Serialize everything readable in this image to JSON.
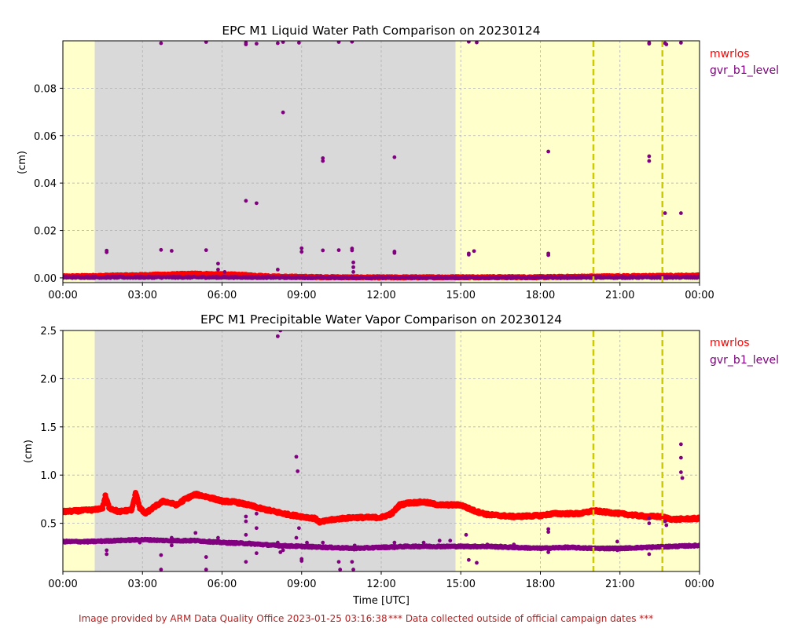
{
  "chart_data": [
    {
      "type": "scatter",
      "title": "EPC M1  Liquid Water Path Comparison on 20230124",
      "ylabel": "(cm)",
      "xlabel": "",
      "xlim": [
        0,
        24
      ],
      "ylim": [
        -0.002,
        0.1
      ],
      "x_tick_labels": [
        "00:00",
        "03:00",
        "06:00",
        "09:00",
        "12:00",
        "15:00",
        "18:00",
        "21:00",
        "00:00"
      ],
      "y_ticks": [
        0.0,
        0.02,
        0.04,
        0.06,
        0.08
      ],
      "y_tick_labels": [
        "0.00",
        "0.02",
        "0.04",
        "0.06",
        "0.08"
      ],
      "grid": true,
      "legend_placement": "outside-right",
      "background_regions": [
        {
          "x0": 0,
          "x1": 1.2,
          "color": "#ffffcc"
        },
        {
          "x0": 1.2,
          "x1": 14.8,
          "color": "#d9d9d9"
        },
        {
          "x0": 14.8,
          "x1": 24,
          "color": "#ffffcc"
        }
      ],
      "vlines": {
        "x": [
          20.0,
          22.6
        ],
        "color": "#cccc00"
      },
      "series": [
        {
          "name": "mwrlos",
          "color": "#ff0000",
          "marker_size": 3.2,
          "band": {
            "step": 0.02,
            "noise": 0.0003,
            "knots": [
              [
                0,
                0.0006
              ],
              [
                3,
                0.0012
              ],
              [
                5,
                0.0018
              ],
              [
                6.5,
                0.0014
              ],
              [
                8,
                0.0006
              ],
              [
                10,
                0.0003
              ],
              [
                12,
                0.0002
              ],
              [
                15,
                0.0003
              ],
              [
                18,
                0.0003
              ],
              [
                20,
                0.0006
              ],
              [
                22,
                0.0008
              ],
              [
                24,
                0.001
              ]
            ]
          },
          "points": []
        },
        {
          "name": "gvr_b1_level",
          "color": "#800080",
          "marker_size": 2.4,
          "band": {
            "step": 0.02,
            "noise": 0.0003,
            "knots": [
              [
                0,
                0.0002
              ],
              [
                6,
                0.0002
              ],
              [
                9,
                0.0001
              ],
              [
                15,
                0.0001
              ],
              [
                24,
                0.0002
              ]
            ]
          },
          "points": [
            [
              1.65,
              0.0108
            ],
            [
              1.65,
              0.0115
            ],
            [
              3.7,
              0.0118
            ],
            [
              4.1,
              0.0114
            ],
            [
              5.4,
              0.0117
            ],
            [
              5.85,
              0.006
            ],
            [
              5.85,
              0.0035
            ],
            [
              6.1,
              0.0025
            ],
            [
              6.9,
              0.0325
            ],
            [
              7.3,
              0.0315
            ],
            [
              8.1,
              0.0035
            ],
            [
              8.3,
              0.0698
            ],
            [
              9.0,
              0.0125
            ],
            [
              9.0,
              0.011
            ],
            [
              9.8,
              0.0116
            ],
            [
              9.8,
              0.0505
            ],
            [
              9.8,
              0.0493
            ],
            [
              10.4,
              0.0117
            ],
            [
              10.9,
              0.0124
            ],
            [
              10.9,
              0.0116
            ],
            [
              10.95,
              0.0065
            ],
            [
              10.95,
              0.0045
            ],
            [
              10.95,
              0.0025
            ],
            [
              12.5,
              0.0105
            ],
            [
              12.5,
              0.0111
            ],
            [
              12.5,
              0.0509
            ],
            [
              15.3,
              0.0098
            ],
            [
              15.5,
              0.0113
            ],
            [
              15.3,
              0.0103
            ],
            [
              18.3,
              0.0096
            ],
            [
              18.3,
              0.0103
            ],
            [
              18.3,
              0.0533
            ],
            [
              22.1,
              0.0513
            ],
            [
              22.1,
              0.0493
            ],
            [
              22.7,
              0.0273
            ],
            [
              23.3,
              0.0273
            ],
            [
              3.7,
              0.099
            ],
            [
              5.4,
              0.0995
            ],
            [
              6.9,
              0.0985
            ],
            [
              6.9,
              0.0992
            ],
            [
              7.3,
              0.0988
            ],
            [
              8.1,
              0.099
            ],
            [
              8.3,
              0.0995
            ],
            [
              8.9,
              0.0992
            ],
            [
              10.4,
              0.0995
            ],
            [
              10.9,
              0.0996
            ],
            [
              15.3,
              0.0996
            ],
            [
              15.6,
              0.0993
            ],
            [
              22.1,
              0.0988
            ],
            [
              22.1,
              0.0992
            ],
            [
              22.7,
              0.099
            ],
            [
              22.75,
              0.0985
            ],
            [
              23.3,
              0.0992
            ]
          ]
        }
      ]
    },
    {
      "type": "scatter",
      "title": "EPC M1  Precipitable Water Vapor Comparison on 20230124",
      "ylabel": "(cm)",
      "xlabel": "Time [UTC]",
      "xlim": [
        0,
        24
      ],
      "ylim": [
        0,
        2.5
      ],
      "x_tick_labels": [
        "00:00",
        "03:00",
        "06:00",
        "09:00",
        "12:00",
        "15:00",
        "18:00",
        "21:00",
        "00:00"
      ],
      "y_ticks": [
        0.5,
        1.0,
        1.5,
        2.0,
        2.5
      ],
      "y_tick_labels": [
        "0.5",
        "1.0",
        "1.5",
        "2.0",
        "2.5"
      ],
      "grid": true,
      "legend_placement": "outside-right",
      "background_regions": [
        {
          "x0": 0,
          "x1": 1.2,
          "color": "#ffffcc"
        },
        {
          "x0": 1.2,
          "x1": 14.8,
          "color": "#d9d9d9"
        },
        {
          "x0": 14.8,
          "x1": 24,
          "color": "#ffffcc"
        }
      ],
      "vlines": {
        "x": [
          20.0,
          22.6
        ],
        "color": "#cccc00"
      },
      "series": [
        {
          "name": "mwrlos",
          "color": "#ff0000",
          "marker_size": 3.6,
          "band": {
            "step": 0.02,
            "noise": 0.012,
            "knots": [
              [
                0,
                0.62
              ],
              [
                0.6,
                0.63
              ],
              [
                1.2,
                0.64
              ],
              [
                1.5,
                0.66
              ],
              [
                1.6,
                0.78
              ],
              [
                1.75,
                0.66
              ],
              [
                2.1,
                0.62
              ],
              [
                2.6,
                0.64
              ],
              [
                2.75,
                0.82
              ],
              [
                2.9,
                0.66
              ],
              [
                3.1,
                0.6
              ],
              [
                3.5,
                0.68
              ],
              [
                3.8,
                0.73
              ],
              [
                4.3,
                0.69
              ],
              [
                4.6,
                0.75
              ],
              [
                5.0,
                0.8
              ],
              [
                5.5,
                0.77
              ],
              [
                6.0,
                0.73
              ],
              [
                6.5,
                0.72
              ],
              [
                7.0,
                0.69
              ],
              [
                7.5,
                0.65
              ],
              [
                8.0,
                0.62
              ],
              [
                8.5,
                0.59
              ],
              [
                9.0,
                0.57
              ],
              [
                9.5,
                0.55
              ],
              [
                9.7,
                0.51
              ],
              [
                10.0,
                0.53
              ],
              [
                10.5,
                0.55
              ],
              [
                11.0,
                0.56
              ],
              [
                12.0,
                0.56
              ],
              [
                12.4,
                0.6
              ],
              [
                12.7,
                0.69
              ],
              [
                13.0,
                0.71
              ],
              [
                13.6,
                0.72
              ],
              [
                14.2,
                0.69
              ],
              [
                15.0,
                0.69
              ],
              [
                15.5,
                0.63
              ],
              [
                16.0,
                0.59
              ],
              [
                17.0,
                0.57
              ],
              [
                18.0,
                0.58
              ],
              [
                18.5,
                0.6
              ],
              [
                19.5,
                0.6
              ],
              [
                20.0,
                0.63
              ],
              [
                21.0,
                0.6
              ],
              [
                22.0,
                0.57
              ],
              [
                22.5,
                0.57
              ],
              [
                23.0,
                0.54
              ],
              [
                24.0,
                0.55
              ]
            ]
          },
          "points": []
        },
        {
          "name": "gvr_b1_level",
          "color": "#800080",
          "marker_size": 3.0,
          "band": {
            "step": 0.02,
            "noise": 0.008,
            "knots": [
              [
                0,
                0.31
              ],
              [
                1.0,
                0.31
              ],
              [
                2.0,
                0.32
              ],
              [
                3.0,
                0.33
              ],
              [
                4.0,
                0.32
              ],
              [
                5.0,
                0.32
              ],
              [
                6.0,
                0.3
              ],
              [
                7.0,
                0.29
              ],
              [
                8.0,
                0.27
              ],
              [
                9.0,
                0.26
              ],
              [
                10.0,
                0.25
              ],
              [
                11.0,
                0.24
              ],
              [
                12.0,
                0.25
              ],
              [
                13.0,
                0.26
              ],
              [
                14.0,
                0.26
              ],
              [
                15.0,
                0.26
              ],
              [
                16.0,
                0.26
              ],
              [
                17.0,
                0.25
              ],
              [
                18.0,
                0.24
              ],
              [
                19.0,
                0.25
              ],
              [
                20.0,
                0.24
              ],
              [
                21.0,
                0.24
              ],
              [
                22.0,
                0.25
              ],
              [
                23.0,
                0.26
              ],
              [
                24.0,
                0.27
              ]
            ]
          },
          "points": [
            [
              1.65,
              0.22
            ],
            [
              1.65,
              0.18
            ],
            [
              2.9,
              0.3
            ],
            [
              3.7,
              0.17
            ],
            [
              3.7,
              0.02
            ],
            [
              4.1,
              0.27
            ],
            [
              4.1,
              0.35
            ],
            [
              5.0,
              0.4
            ],
            [
              5.4,
              0.15
            ],
            [
              5.4,
              0.02
            ],
            [
              5.85,
              0.35
            ],
            [
              6.9,
              0.57
            ],
            [
              6.9,
              0.52
            ],
            [
              6.9,
              0.38
            ],
            [
              6.9,
              0.1
            ],
            [
              7.3,
              0.6
            ],
            [
              7.3,
              0.45
            ],
            [
              7.3,
              0.19
            ],
            [
              8.1,
              2.44
            ],
            [
              8.2,
              2.5
            ],
            [
              8.1,
              0.3
            ],
            [
              8.2,
              0.2
            ],
            [
              8.3,
              0.22
            ],
            [
              8.8,
              1.19
            ],
            [
              8.85,
              1.04
            ],
            [
              8.9,
              0.45
            ],
            [
              8.8,
              0.35
            ],
            [
              9.0,
              0.13
            ],
            [
              9.0,
              0.11
            ],
            [
              9.2,
              0.3
            ],
            [
              9.8,
              0.3
            ],
            [
              10.4,
              0.1
            ],
            [
              10.45,
              0.02
            ],
            [
              10.9,
              0.1
            ],
            [
              10.95,
              0.02
            ],
            [
              11.0,
              0.27
            ],
            [
              12.5,
              0.24
            ],
            [
              12.5,
              0.3
            ],
            [
              13.6,
              0.3
            ],
            [
              14.2,
              0.32
            ],
            [
              14.6,
              0.32
            ],
            [
              15.2,
              0.38
            ],
            [
              15.3,
              0.12
            ],
            [
              15.6,
              0.09
            ],
            [
              15.5,
              0.25
            ],
            [
              16.0,
              0.28
            ],
            [
              16.5,
              0.27
            ],
            [
              17.0,
              0.28
            ],
            [
              18.3,
              0.44
            ],
            [
              18.3,
              0.41
            ],
            [
              18.3,
              0.2
            ],
            [
              19.0,
              0.25
            ],
            [
              20.9,
              0.31
            ],
            [
              20.9,
              0.22
            ],
            [
              22.1,
              0.55
            ],
            [
              22.1,
              0.5
            ],
            [
              22.1,
              0.18
            ],
            [
              22.7,
              0.52
            ],
            [
              22.75,
              0.48
            ],
            [
              23.3,
              1.32
            ],
            [
              23.3,
              1.18
            ],
            [
              23.3,
              1.03
            ],
            [
              23.35,
              0.97
            ]
          ]
        }
      ]
    }
  ],
  "footer": {
    "provider": "Image provided by ARM Data Quality Office 2023-01-25 03:16:38",
    "notice": "*** Data collected outside of official campaign dates ***"
  }
}
